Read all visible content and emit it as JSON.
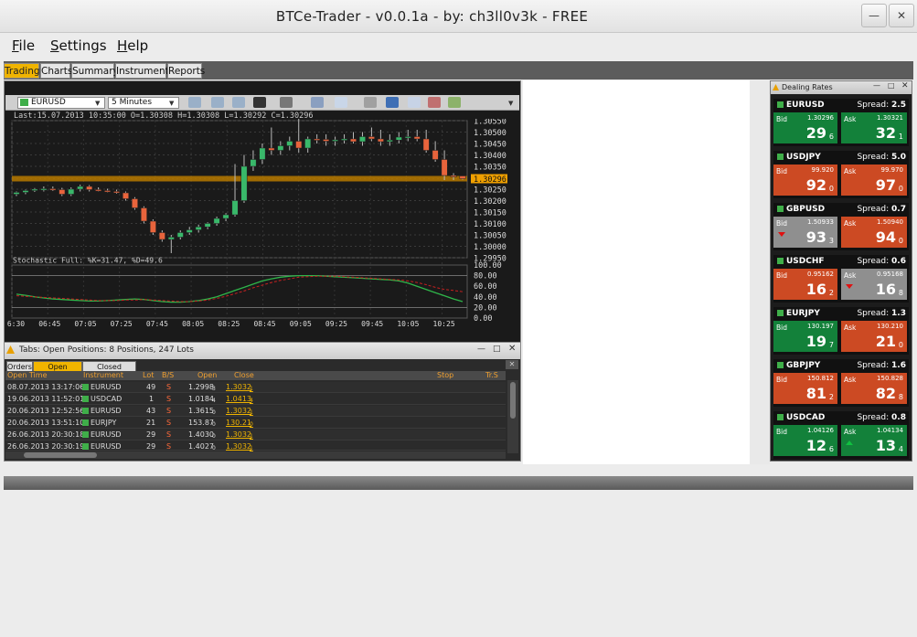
{
  "window": {
    "title": "BTCe-Trader - v0.0.1a - by: ch3ll0v3k - FREE"
  },
  "menu": [
    {
      "label": "File",
      "u": "F",
      "rest": "ile"
    },
    {
      "label": "Settings",
      "u": "S",
      "rest": "ettings"
    },
    {
      "label": "Help",
      "u": "H",
      "rest": "elp"
    }
  ],
  "tabs": [
    "Trading",
    "Charts",
    "Summary",
    "Instruments",
    "Reports"
  ],
  "active_tab": "Trading",
  "chart": {
    "instrument": "EURUSD",
    "period": "5 Minutes",
    "info": "Last:15.07.2013 10:35:00 O=1.30308 H=1.30308 L=1.30292 C=1.30296",
    "current_price": "1.30296",
    "price_ticks": [
      "1.30550",
      "1.30500",
      "1.30450",
      "1.30400",
      "1.30350",
      "1.30296",
      "1.30250",
      "1.30200",
      "1.30150",
      "1.30100",
      "1.30050",
      "1.30000",
      "1.29950"
    ],
    "stoch_label": "Stochastic Full: %K=31.47, %D=49.6",
    "stoch_ticks": [
      "100.00",
      "80.00",
      "60.00",
      "40.00",
      "20.00",
      "0.00"
    ],
    "time_ticks": [
      "06:30",
      "06:45",
      "07:05",
      "07:25",
      "07:45",
      "08:05",
      "08:25",
      "08:45",
      "09:05",
      "09:25",
      "09:45",
      "10:05",
      "10:25"
    ]
  },
  "positions": {
    "title": "Tabs: Open Positions: 8 Positions, 247 Lots",
    "tabs": [
      "Orders",
      "Open Positions",
      "Closed Positions"
    ],
    "active_tab": "Open Positions",
    "headers": [
      "Open Time",
      "Instrument",
      "Lot",
      "B/S",
      "Open",
      "Close",
      "Stop",
      "Tr.S"
    ],
    "rows": [
      {
        "time": "08.07.2013 13:17:06",
        "instrument": "EURUSD",
        "lot": "49",
        "side": "S",
        "open": "1.2998",
        "open_pip": "3",
        "close": "1.3032",
        "close_pip": "1"
      },
      {
        "time": "19.06.2013 11:52:01",
        "instrument": "USDCAD",
        "lot": "1",
        "side": "S",
        "open": "1.0184",
        "open_pip": "4",
        "close": "1.0413",
        "close_pip": "4"
      },
      {
        "time": "20.06.2013 12:52:56",
        "instrument": "EURUSD",
        "lot": "43",
        "side": "S",
        "open": "1.3615",
        "open_pip": "0",
        "close": "1.3032",
        "close_pip": "1"
      },
      {
        "time": "20.06.2013 13:51:10",
        "instrument": "EURJPY",
        "lot": "21",
        "side": "S",
        "open": "153.87",
        "open_pip": "0",
        "close": "130.21",
        "close_pip": "0"
      },
      {
        "time": "26.06.2013 20:30:18",
        "instrument": "EURUSD",
        "lot": "29",
        "side": "S",
        "open": "1.4030",
        "open_pip": "0",
        "close": "1.3032",
        "close_pip": "1"
      },
      {
        "time": "26.06.2013 20:30:19",
        "instrument": "EURUSD",
        "lot": "29",
        "side": "S",
        "open": "1.4027",
        "open_pip": "0",
        "close": "1.3032",
        "close_pip": "1"
      }
    ]
  },
  "rates": {
    "title": "Dealing Rates",
    "spread_label": "Spread:",
    "bid_label": "Bid",
    "ask_label": "Ask",
    "cards": [
      {
        "symbol": "EURUSD",
        "spread": "2.5",
        "bid_price": "1.30296",
        "bid_big": "29",
        "bid_pip": "6",
        "bid_color": "green",
        "ask_price": "1.30321",
        "ask_big": "32",
        "ask_pip": "1",
        "ask_color": "green",
        "bid_arrow": "",
        "ask_arrow": ""
      },
      {
        "symbol": "USDJPY",
        "spread": "5.0",
        "bid_price": "99.920",
        "bid_big": "92",
        "bid_pip": "0",
        "bid_color": "red",
        "ask_price": "99.970",
        "ask_big": "97",
        "ask_pip": "0",
        "ask_color": "red",
        "bid_arrow": "",
        "ask_arrow": ""
      },
      {
        "symbol": "GBPUSD",
        "spread": "0.7",
        "bid_price": "1.50933",
        "bid_big": "93",
        "bid_pip": "3",
        "bid_color": "grey",
        "ask_price": "1.50940",
        "ask_big": "94",
        "ask_pip": "0",
        "ask_color": "red",
        "bid_arrow": "down",
        "ask_arrow": ""
      },
      {
        "symbol": "USDCHF",
        "spread": "0.6",
        "bid_price": "0.95162",
        "bid_big": "16",
        "bid_pip": "2",
        "bid_color": "red",
        "ask_price": "0.95168",
        "ask_big": "16",
        "ask_pip": "8",
        "ask_color": "grey",
        "bid_arrow": "",
        "ask_arrow": "down"
      },
      {
        "symbol": "EURJPY",
        "spread": "1.3",
        "bid_price": "130.197",
        "bid_big": "19",
        "bid_pip": "7",
        "bid_color": "green",
        "ask_price": "130.210",
        "ask_big": "21",
        "ask_pip": "0",
        "ask_color": "red",
        "bid_arrow": "",
        "ask_arrow": ""
      },
      {
        "symbol": "GBPJPY",
        "spread": "1.6",
        "bid_price": "150.812",
        "bid_big": "81",
        "bid_pip": "2",
        "bid_color": "red",
        "ask_price": "150.828",
        "ask_big": "82",
        "ask_pip": "8",
        "ask_color": "red",
        "bid_arrow": "",
        "ask_arrow": ""
      },
      {
        "symbol": "USDCAD",
        "spread": "0.8",
        "bid_price": "1.04126",
        "bid_big": "12",
        "bid_pip": "6",
        "bid_color": "green",
        "ask_price": "1.04134",
        "ask_big": "13",
        "ask_pip": "4",
        "ask_color": "green",
        "bid_arrow": "",
        "ask_arrow": "up"
      }
    ]
  },
  "chart_data": {
    "type": "candlestick",
    "x": [
      "06:30",
      "06:35",
      "06:40",
      "06:45",
      "06:50",
      "06:55",
      "07:00",
      "07:05",
      "07:10",
      "07:15",
      "07:20",
      "07:25",
      "07:30",
      "07:35",
      "07:40",
      "07:45",
      "07:50",
      "07:55",
      "08:00",
      "08:05",
      "08:10",
      "08:15",
      "08:20",
      "08:25",
      "08:30",
      "08:35",
      "08:40",
      "08:45",
      "08:50",
      "08:55",
      "09:00",
      "09:05",
      "09:10",
      "09:15",
      "09:20",
      "09:25",
      "09:30",
      "09:35",
      "09:40",
      "09:45",
      "09:50",
      "09:55",
      "10:00",
      "10:05",
      "10:10",
      "10:15",
      "10:20",
      "10:25",
      "10:30",
      "10:35"
    ],
    "open": [
      1.30228,
      1.30236,
      1.30244,
      1.3025,
      1.30252,
      1.30248,
      1.30228,
      1.3025,
      1.30262,
      1.30248,
      1.30244,
      1.3024,
      1.30234,
      1.30208,
      1.30168,
      1.3011,
      1.3006,
      1.3003,
      1.3004,
      1.3006,
      1.30072,
      1.30085,
      1.301,
      1.30122,
      1.30138,
      1.302,
      1.3035,
      1.3038,
      1.3043,
      1.3042,
      1.3044,
      1.3046,
      1.3043,
      1.3047,
      1.30468,
      1.3046,
      1.30466,
      1.3047,
      1.30458,
      1.3048,
      1.3047,
      1.30458,
      1.30465,
      1.30478,
      1.3048,
      1.3047,
      1.3042,
      1.3038,
      1.3031,
      1.30308
    ],
    "high": [
      1.3024,
      1.30248,
      1.30255,
      1.30262,
      1.30262,
      1.30256,
      1.30258,
      1.3027,
      1.30268,
      1.30258,
      1.30252,
      1.30248,
      1.3024,
      1.30215,
      1.30175,
      1.30118,
      1.3007,
      1.3005,
      1.3007,
      1.30085,
      1.30095,
      1.30105,
      1.3013,
      1.30145,
      1.3036,
      1.304,
      1.3042,
      1.3045,
      1.3052,
      1.3046,
      1.3048,
      1.3056,
      1.3048,
      1.3049,
      1.3049,
      1.3048,
      1.3049,
      1.305,
      1.305,
      1.3052,
      1.3051,
      1.3049,
      1.305,
      1.3051,
      1.3051,
      1.3051,
      1.3046,
      1.3042,
      1.3032,
      1.30308
    ],
    "low": [
      1.3022,
      1.30228,
      1.30238,
      1.3024,
      1.30242,
      1.3022,
      1.3022,
      1.3024,
      1.3024,
      1.3024,
      1.30236,
      1.3023,
      1.302,
      1.3016,
      1.301,
      1.3005,
      1.3002,
      1.2997,
      1.3003,
      1.3005,
      1.3006,
      1.30075,
      1.3009,
      1.3011,
      1.3013,
      1.3019,
      1.3033,
      1.3036,
      1.304,
      1.304,
      1.3042,
      1.3041,
      1.3041,
      1.3045,
      1.3044,
      1.3044,
      1.3045,
      1.3045,
      1.3044,
      1.3046,
      1.3044,
      1.3044,
      1.3045,
      1.3046,
      1.3046,
      1.3041,
      1.3037,
      1.3029,
      1.3029,
      1.30292
    ],
    "close": [
      1.30236,
      1.30244,
      1.3025,
      1.30252,
      1.30248,
      1.30228,
      1.3025,
      1.30262,
      1.30248,
      1.30244,
      1.3024,
      1.30234,
      1.30208,
      1.30168,
      1.3011,
      1.3006,
      1.3003,
      1.3004,
      1.3006,
      1.30072,
      1.30085,
      1.301,
      1.30122,
      1.30138,
      1.302,
      1.3035,
      1.3038,
      1.3043,
      1.3042,
      1.3044,
      1.3046,
      1.3043,
      1.3047,
      1.30468,
      1.3046,
      1.30466,
      1.3047,
      1.30458,
      1.3048,
      1.3047,
      1.30458,
      1.30465,
      1.30478,
      1.3048,
      1.3047,
      1.3042,
      1.3038,
      1.3031,
      1.30308,
      1.30296
    ],
    "stoch_k": [
      45,
      43,
      40,
      38,
      36,
      35,
      34,
      33,
      32,
      32,
      33,
      34,
      35,
      36,
      35,
      33,
      31,
      30,
      30,
      31,
      33,
      36,
      40,
      46,
      52,
      58,
      64,
      70,
      74,
      77,
      79,
      80,
      80,
      80,
      79,
      78,
      77,
      76,
      75,
      74,
      73,
      72,
      70,
      66,
      60,
      54,
      48,
      42,
      36,
      31
    ],
    "stoch_d": [
      42,
      41,
      40,
      39,
      38,
      37,
      36,
      35,
      34,
      33,
      33,
      33,
      34,
      34,
      35,
      34,
      33,
      32,
      31,
      31,
      32,
      34,
      37,
      41,
      46,
      51,
      57,
      62,
      67,
      71,
      74,
      77,
      78,
      79,
      79,
      79,
      78,
      77,
      76,
      75,
      74,
      73,
      72,
      70,
      67,
      63,
      58,
      54,
      52,
      49.6
    ],
    "ylim": [
      1.2995,
      1.3055
    ],
    "stoch_ylim": [
      0,
      100
    ]
  }
}
